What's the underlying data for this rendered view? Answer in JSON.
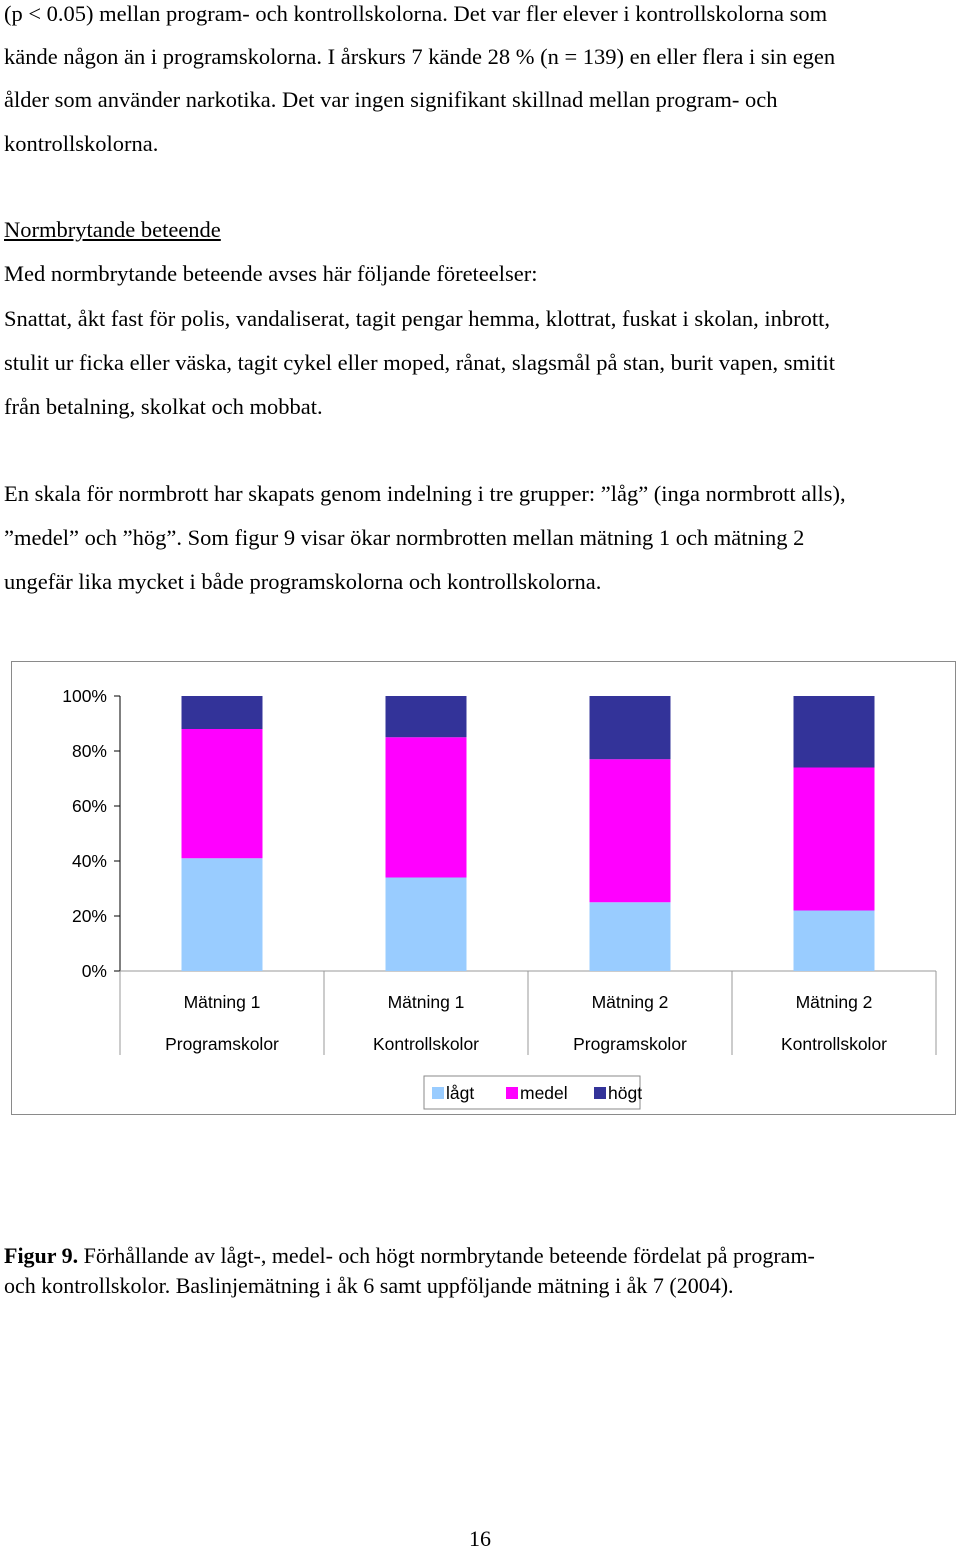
{
  "paragraph1": {
    "lines": [
      "(p < 0.05) mellan program- och kontrollskolorna. Det var fler elever i kontrollskolorna som",
      "kände någon än i programskolorna. I årskurs 7 kände 28 % (n = 139) en eller flera i sin egen",
      "ålder som använder narkotika. Det var ingen signifikant skillnad mellan program- och",
      "kontrollskolorna."
    ]
  },
  "section": {
    "heading": "Normbrytande beteende",
    "intro": "Med normbrytande beteende avses här följande företeelser:",
    "list_lines": [
      "Snattat, åkt fast för polis, vandaliserat, tagit pengar hemma, klottrat, fuskat i skolan, inbrott,",
      "stulit ur ficka eller väska, tagit cykel eller moped, rånat, slagsmål på stan, burit vapen, smitit",
      "från betalning, skolkat och mobbat."
    ],
    "scale_lines": [
      "En skala för normbrott har skapats genom indelning i tre grupper: ”låg” (inga normbrott alls),",
      "”medel” och ”hög”. Som figur 9 visar ökar normbrotten mellan mätning 1 och mätning 2",
      "ungefär lika mycket i både programskolorna och kontrollskolorna."
    ]
  },
  "chart_data": {
    "type": "bar",
    "stacked": true,
    "categories": [
      [
        "Mätning 1",
        "Programskolor"
      ],
      [
        "Mätning 1",
        "Kontrollskolor"
      ],
      [
        "Mätning 2",
        "Programskolor"
      ],
      [
        "Mätning 2",
        "Kontrollskolor"
      ]
    ],
    "series": [
      {
        "name": "lågt",
        "color": "#99ccff",
        "values": [
          41,
          34,
          25,
          22
        ]
      },
      {
        "name": "medel",
        "color": "#ff00ff",
        "values": [
          47,
          51,
          52,
          52
        ]
      },
      {
        "name": "högt",
        "color": "#333399",
        "values": [
          12,
          15,
          23,
          26
        ]
      }
    ],
    "yticks": [
      "0%",
      "20%",
      "40%",
      "60%",
      "80%",
      "100%"
    ],
    "ylim": [
      0,
      100
    ],
    "legend_position": "bottom",
    "grid": false
  },
  "caption": {
    "label": "Figur 9.",
    "text_line1": " Förhållande av lågt-, medel- och högt normbrytande beteende fördelat på program-",
    "text_line2": "och kontrollskolor. Baslinjemätning i åk 6 samt uppföljande mätning i åk 7 (2004)."
  },
  "page_number": "16"
}
